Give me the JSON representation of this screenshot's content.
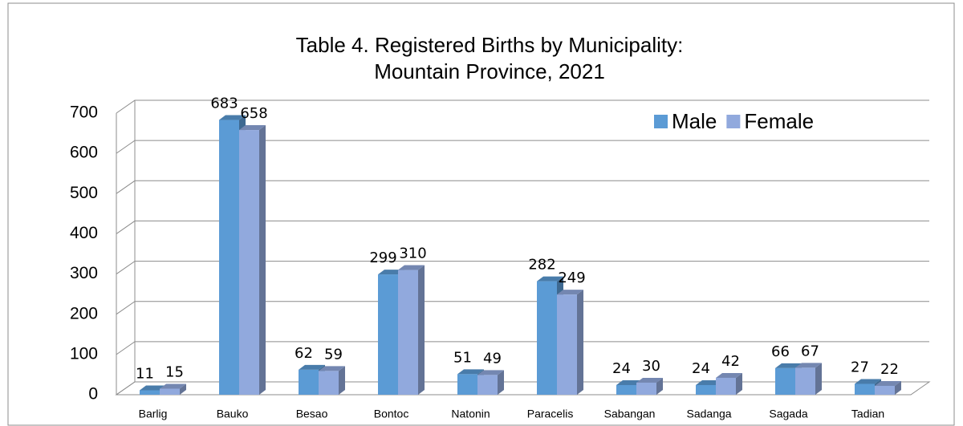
{
  "chart_data": {
    "type": "bar3d",
    "title": [
      "Table 4. Registered Births by Municipality:",
      "Mountain Province, 2021"
    ],
    "categories": [
      "Barlig",
      "Bauko",
      "Besao",
      "Bontoc",
      "Natonin",
      "Paracelis",
      "Sabangan",
      "Sadanga",
      "Sagada",
      "Tadian"
    ],
    "series": [
      {
        "name": "Male",
        "color": "#5b9bd5",
        "values": [
          11,
          683,
          62,
          299,
          51,
          282,
          24,
          24,
          66,
          27
        ]
      },
      {
        "name": "Female",
        "color": "#91a9dd",
        "values": [
          15,
          658,
          59,
          310,
          49,
          249,
          30,
          42,
          67,
          22
        ]
      }
    ],
    "ylim": [
      0,
      700
    ],
    "yticks": [
      0,
      100,
      200,
      300,
      400,
      500,
      600,
      700
    ],
    "grid": true,
    "legend": "top-right"
  }
}
